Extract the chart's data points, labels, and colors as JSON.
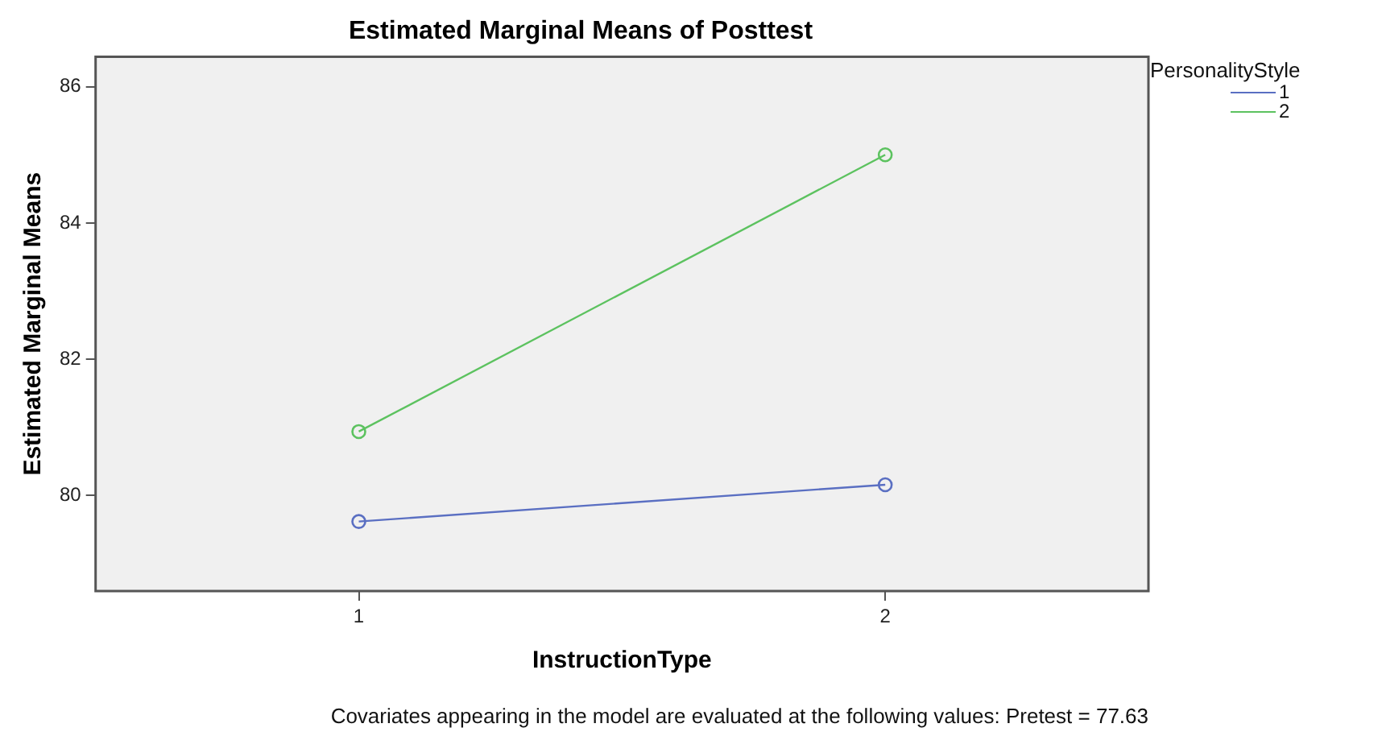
{
  "chart_data": {
    "type": "line",
    "title": "Estimated Marginal Means of Posttest",
    "xlabel": "InstructionType",
    "ylabel": "Estimated Marginal Means",
    "legend_title": "PersonalityStyle",
    "categories": [
      "1",
      "2"
    ],
    "series": [
      {
        "name": "1",
        "color": "#5a6fc2",
        "values": [
          79.62,
          80.16
        ]
      },
      {
        "name": "2",
        "color": "#5cc25f",
        "values": [
          80.94,
          85.0
        ]
      }
    ],
    "ylim": [
      78.6,
      86.44
    ],
    "yticks": [
      80,
      82,
      84,
      86
    ],
    "grid": false,
    "legend": "top right",
    "marker": "circle",
    "line_style": "solid",
    "annotations": [
      "Covariates appearing in the model are evaluated at the following values: Pretest = 77.63"
    ]
  }
}
